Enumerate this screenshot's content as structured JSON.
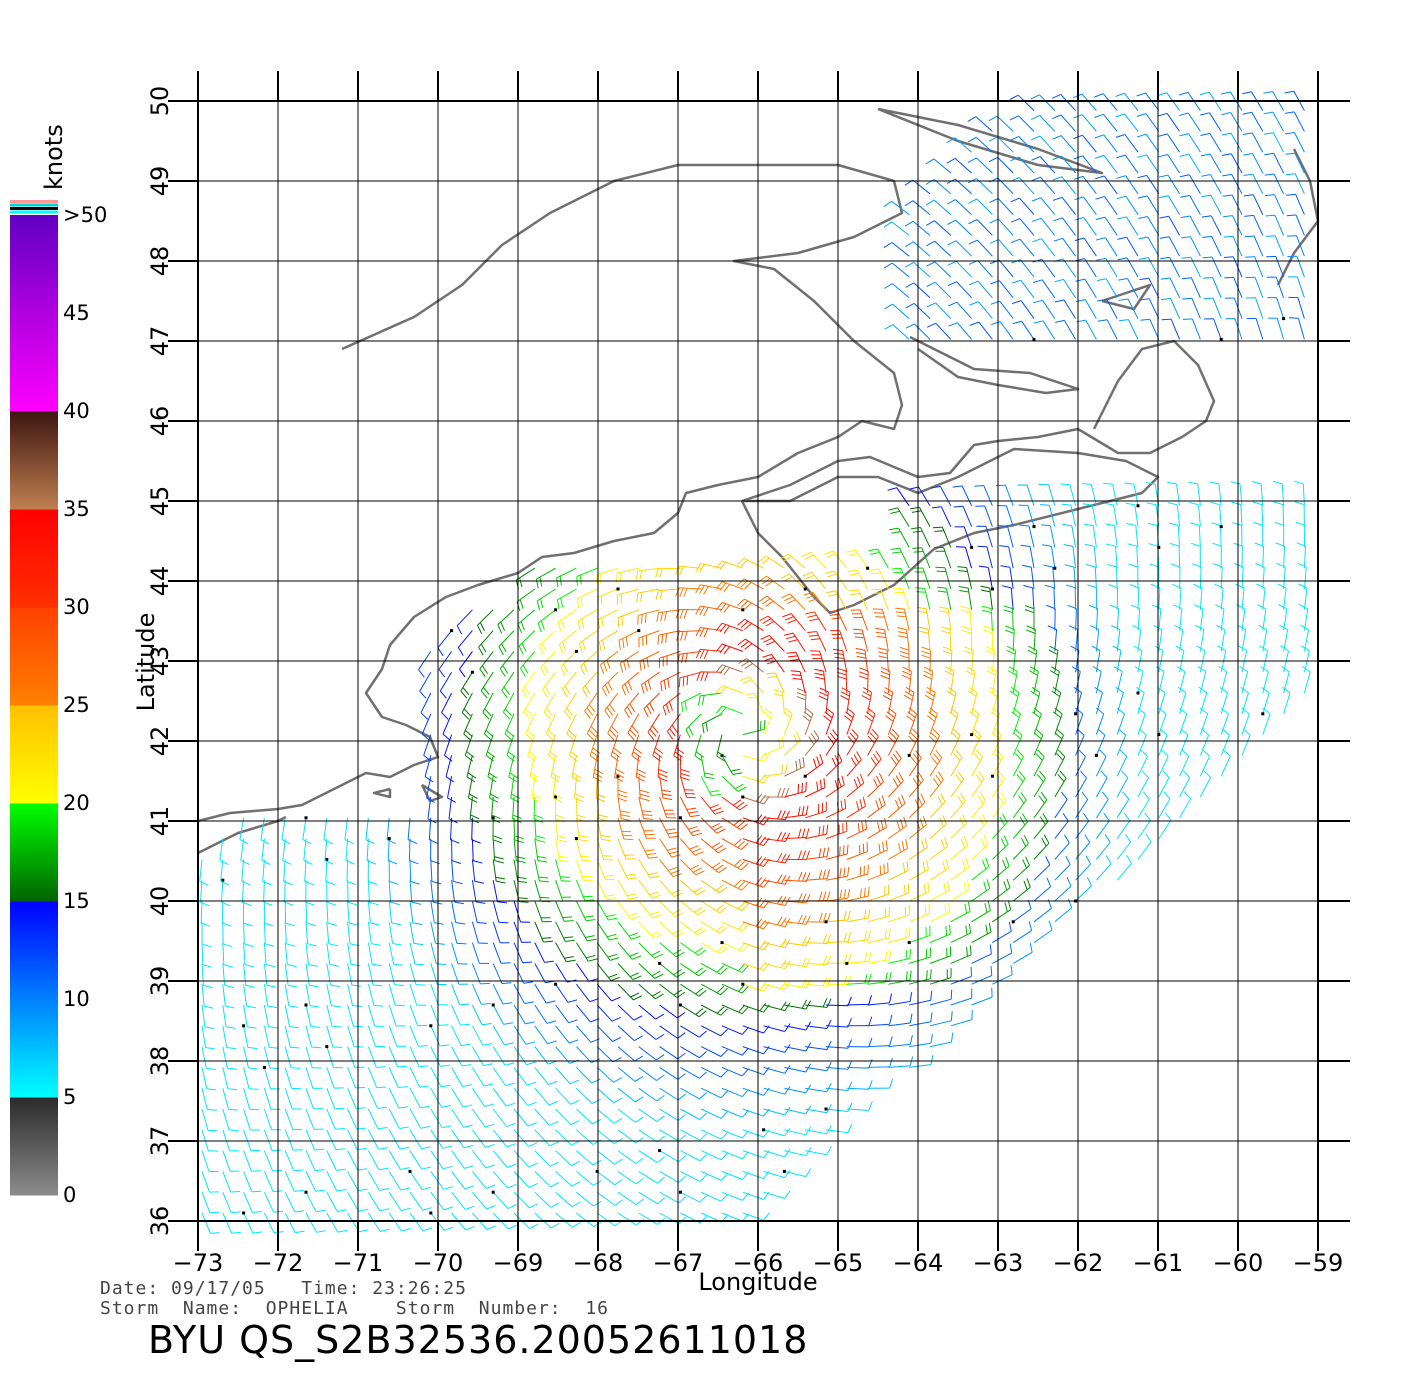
{
  "map": {
    "lon_range": [
      -73,
      -59
    ],
    "lat_range": [
      36,
      50
    ],
    "lon_ticks": [
      -73,
      -72,
      -71,
      -70,
      -69,
      -68,
      -67,
      -66,
      -65,
      -64,
      -63,
      -62,
      -61,
      -60,
      -59
    ],
    "lat_ticks": [
      36,
      37,
      38,
      39,
      40,
      41,
      42,
      43,
      44,
      45,
      46,
      47,
      48,
      49,
      50
    ],
    "xlabel": "Longitude",
    "ylabel": "Latitude",
    "grid": true,
    "coast_color": "#707070",
    "storm_center": {
      "lon": -66.2,
      "lat": 42.1
    }
  },
  "colorbar": {
    "title": "knots",
    "labels": [
      "0",
      "5",
      "10",
      "15",
      "20",
      "25",
      "30",
      "35",
      "40",
      "45",
      ">50"
    ],
    "segments": [
      {
        "from": 0,
        "to": 5,
        "colors": [
          "#8c8c8c",
          "#2a2a2a"
        ]
      },
      {
        "from": 5,
        "to": 15,
        "colors": [
          "#00ffff",
          "#0000ff"
        ]
      },
      {
        "from": 15,
        "to": 20,
        "colors": [
          "#006400",
          "#00ff00"
        ]
      },
      {
        "from": 20,
        "to": 25,
        "colors": [
          "#ffff00",
          "#ffc000"
        ]
      },
      {
        "from": 25,
        "to": 30,
        "colors": [
          "#ff8000",
          "#ff4000"
        ]
      },
      {
        "from": 30,
        "to": 35,
        "colors": [
          "#ff3000",
          "#ff0000"
        ]
      },
      {
        "from": 35,
        "to": 40,
        "colors": [
          "#c08050",
          "#3c1410"
        ]
      },
      {
        "from": 40,
        "to": 50,
        "colors": [
          "#ff00ff",
          "#6000c0"
        ]
      }
    ],
    "top_stripes": [
      "#ff9999",
      "#00d0d0",
      "#000000",
      "#00ffff"
    ]
  },
  "info": {
    "line1": "Date: 09/17/05   Time: 23:26:25",
    "line2": "Storm  Name:  OPHELIA    Storm  Number:  16",
    "product": "BYU  QS_S2B32536.20052611018"
  }
}
